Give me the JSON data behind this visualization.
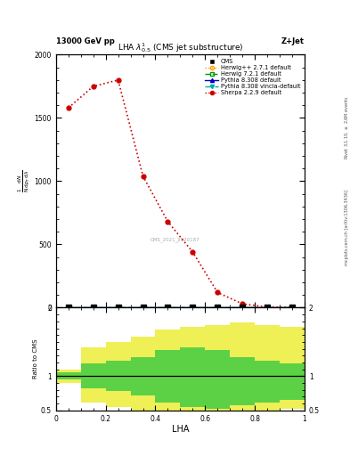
{
  "title": "LHA $\\lambda^{1}_{0.5}$ (CMS jet substructure)",
  "header_left": "13000 GeV pp",
  "header_right": "Z+Jet",
  "right_label_top": "Rivet 3.1.10, $\\geq$ 2.6M events",
  "right_label_bottom": "mcplots.cern.ch [arXiv:1306.3436]",
  "watermark": "CMS_2021_JI920187",
  "xlabel": "LHA",
  "ylim_main": [
    0,
    2000
  ],
  "sherpa_x": [
    0.05,
    0.15,
    0.25,
    0.35,
    0.45,
    0.55,
    0.65,
    0.75,
    0.85,
    0.95
  ],
  "sherpa_y": [
    1580,
    1750,
    1800,
    1040,
    680,
    440,
    120,
    30,
    5,
    2
  ],
  "near_zero_x": [
    0.05,
    0.15,
    0.25,
    0.35,
    0.45,
    0.55,
    0.65,
    0.75,
    0.85,
    0.95
  ],
  "near_zero_y": [
    0,
    0,
    0,
    0,
    0,
    0,
    0,
    0,
    0,
    0
  ],
  "ratio_x_edges": [
    0.0,
    0.1,
    0.2,
    0.3,
    0.4,
    0.5,
    0.6,
    0.7,
    0.8,
    0.9,
    1.0
  ],
  "ratio_green_low": [
    0.95,
    0.82,
    0.78,
    0.72,
    0.62,
    0.55,
    0.52,
    0.58,
    0.62,
    0.65
  ],
  "ratio_green_high": [
    1.05,
    1.18,
    1.22,
    1.28,
    1.38,
    1.42,
    1.38,
    1.28,
    1.22,
    1.18
  ],
  "ratio_yellow_low": [
    0.9,
    0.62,
    0.55,
    0.48,
    0.4,
    0.35,
    0.35,
    0.42,
    0.48,
    0.52
  ],
  "ratio_yellow_high": [
    1.1,
    1.42,
    1.5,
    1.58,
    1.68,
    1.72,
    1.75,
    1.78,
    1.75,
    1.72
  ],
  "color_sherpa": "#cc0000",
  "color_herwig_pp": "#ff9900",
  "color_herwig7": "#009900",
  "color_pythia": "#0000cc",
  "color_pythia_vincia": "#00aaaa",
  "color_cms": "#000000",
  "yticks_main": [
    0,
    500,
    1000,
    1500,
    2000
  ],
  "ytick_labels_main": [
    "0",
    "500",
    "1000",
    "1500",
    "2000"
  ],
  "xticks": [
    0,
    0.2,
    0.4,
    0.6,
    0.8,
    1.0
  ],
  "xtick_labels": [
    "0",
    "0.2",
    "0.4",
    "0.6",
    "0.8",
    "1"
  ],
  "ratio_yticks": [
    0.5,
    1.0,
    2.0
  ],
  "ratio_ytick_labels": [
    "0.5",
    "1",
    "2"
  ]
}
